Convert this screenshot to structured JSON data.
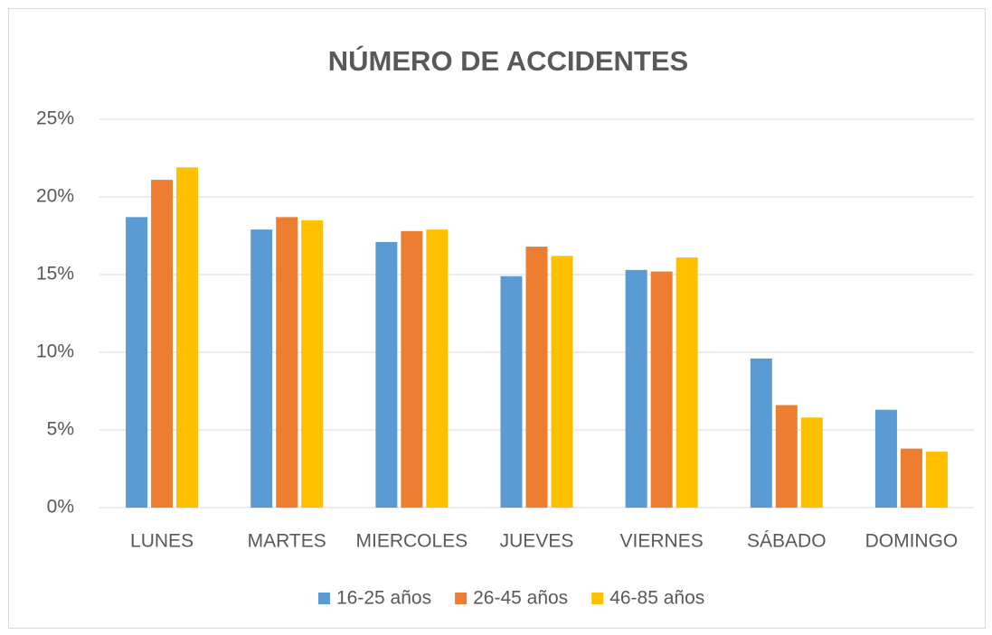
{
  "chart_data": {
    "type": "bar",
    "title": "NÚMERO DE ACCIDENTES",
    "categories": [
      "LUNES",
      "MARTES",
      "MIERCOLES",
      "JUEVES",
      "VIERNES",
      "SÁBADO",
      "DOMINGO"
    ],
    "series": [
      {
        "name": "16-25 años",
        "color": "#5b9bd5",
        "values": [
          18.7,
          17.9,
          17.1,
          14.9,
          15.3,
          9.6,
          6.3
        ]
      },
      {
        "name": "26-45 años",
        "color": "#ed7d31",
        "values": [
          21.1,
          18.7,
          17.8,
          16.8,
          15.2,
          6.6,
          3.8
        ]
      },
      {
        "name": "46-85 años",
        "color": "#ffc000",
        "values": [
          21.9,
          18.5,
          17.9,
          16.2,
          16.1,
          5.8,
          3.6
        ]
      }
    ],
    "ylim": [
      0,
      25
    ],
    "yticks": [
      {
        "value": 0,
        "label": "0%"
      },
      {
        "value": 5,
        "label": "5%"
      },
      {
        "value": 10,
        "label": "10%"
      },
      {
        "value": 15,
        "label": "15%"
      },
      {
        "value": 20,
        "label": "20%"
      },
      {
        "value": 25,
        "label": "25%"
      }
    ],
    "grid": true,
    "legend": "bottom"
  }
}
